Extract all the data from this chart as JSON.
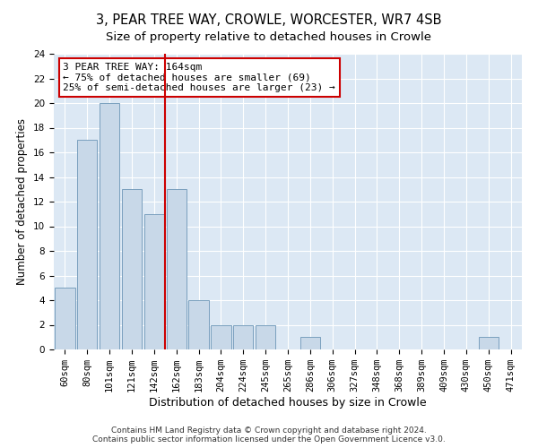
{
  "title": "3, PEAR TREE WAY, CROWLE, WORCESTER, WR7 4SB",
  "subtitle": "Size of property relative to detached houses in Crowle",
  "xlabel": "Distribution of detached houses by size in Crowle",
  "ylabel": "Number of detached properties",
  "categories": [
    "60sqm",
    "80sqm",
    "101sqm",
    "121sqm",
    "142sqm",
    "162sqm",
    "183sqm",
    "204sqm",
    "224sqm",
    "245sqm",
    "265sqm",
    "286sqm",
    "306sqm",
    "327sqm",
    "348sqm",
    "368sqm",
    "389sqm",
    "409sqm",
    "430sqm",
    "450sqm",
    "471sqm"
  ],
  "values": [
    5,
    17,
    20,
    13,
    11,
    13,
    4,
    2,
    2,
    2,
    0,
    1,
    0,
    0,
    0,
    0,
    0,
    0,
    0,
    1,
    0
  ],
  "bar_color": "#c8d8e8",
  "bar_edge_color": "#7aa0be",
  "vline_x": 4.5,
  "vline_color": "#cc0000",
  "annotation_text": "3 PEAR TREE WAY: 164sqm\n← 75% of detached houses are smaller (69)\n25% of semi-detached houses are larger (23) →",
  "annotation_box_color": "#cc0000",
  "ylim": [
    0,
    24
  ],
  "yticks": [
    0,
    2,
    4,
    6,
    8,
    10,
    12,
    14,
    16,
    18,
    20,
    22,
    24
  ],
  "bg_color": "#dce8f4",
  "footer_text": "Contains HM Land Registry data © Crown copyright and database right 2024.\nContains public sector information licensed under the Open Government Licence v3.0.",
  "title_fontsize": 10.5,
  "xlabel_fontsize": 9,
  "ylabel_fontsize": 8.5,
  "tick_fontsize": 7.5
}
